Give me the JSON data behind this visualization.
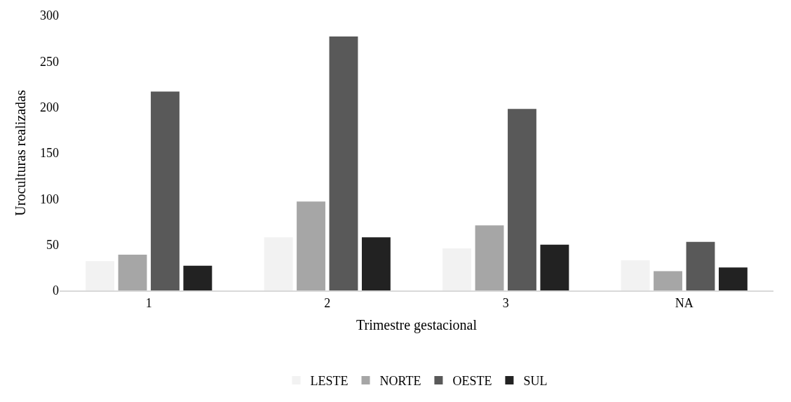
{
  "chart_data": {
    "type": "bar",
    "xlabel": "Trimestre gestacional",
    "ylabel": "Uroculturas realizadas",
    "categories": [
      "1",
      "2",
      "3",
      "NA"
    ],
    "series": [
      {
        "name": "LESTE",
        "color": "#f2f2f2",
        "values": [
          32,
          58,
          46,
          33
        ]
      },
      {
        "name": "NORTE",
        "color": "#a6a6a6",
        "values": [
          39,
          97,
          71,
          21
        ]
      },
      {
        "name": "OESTE",
        "color": "#595959",
        "values": [
          217,
          277,
          198,
          53
        ]
      },
      {
        "name": "SUL",
        "color": "#222222",
        "values": [
          27,
          58,
          50,
          25
        ]
      }
    ],
    "ylim": [
      0,
      300
    ],
    "yticks": [
      0,
      50,
      100,
      150,
      200,
      250,
      300
    ],
    "grid": false,
    "legend": "bottom"
  }
}
